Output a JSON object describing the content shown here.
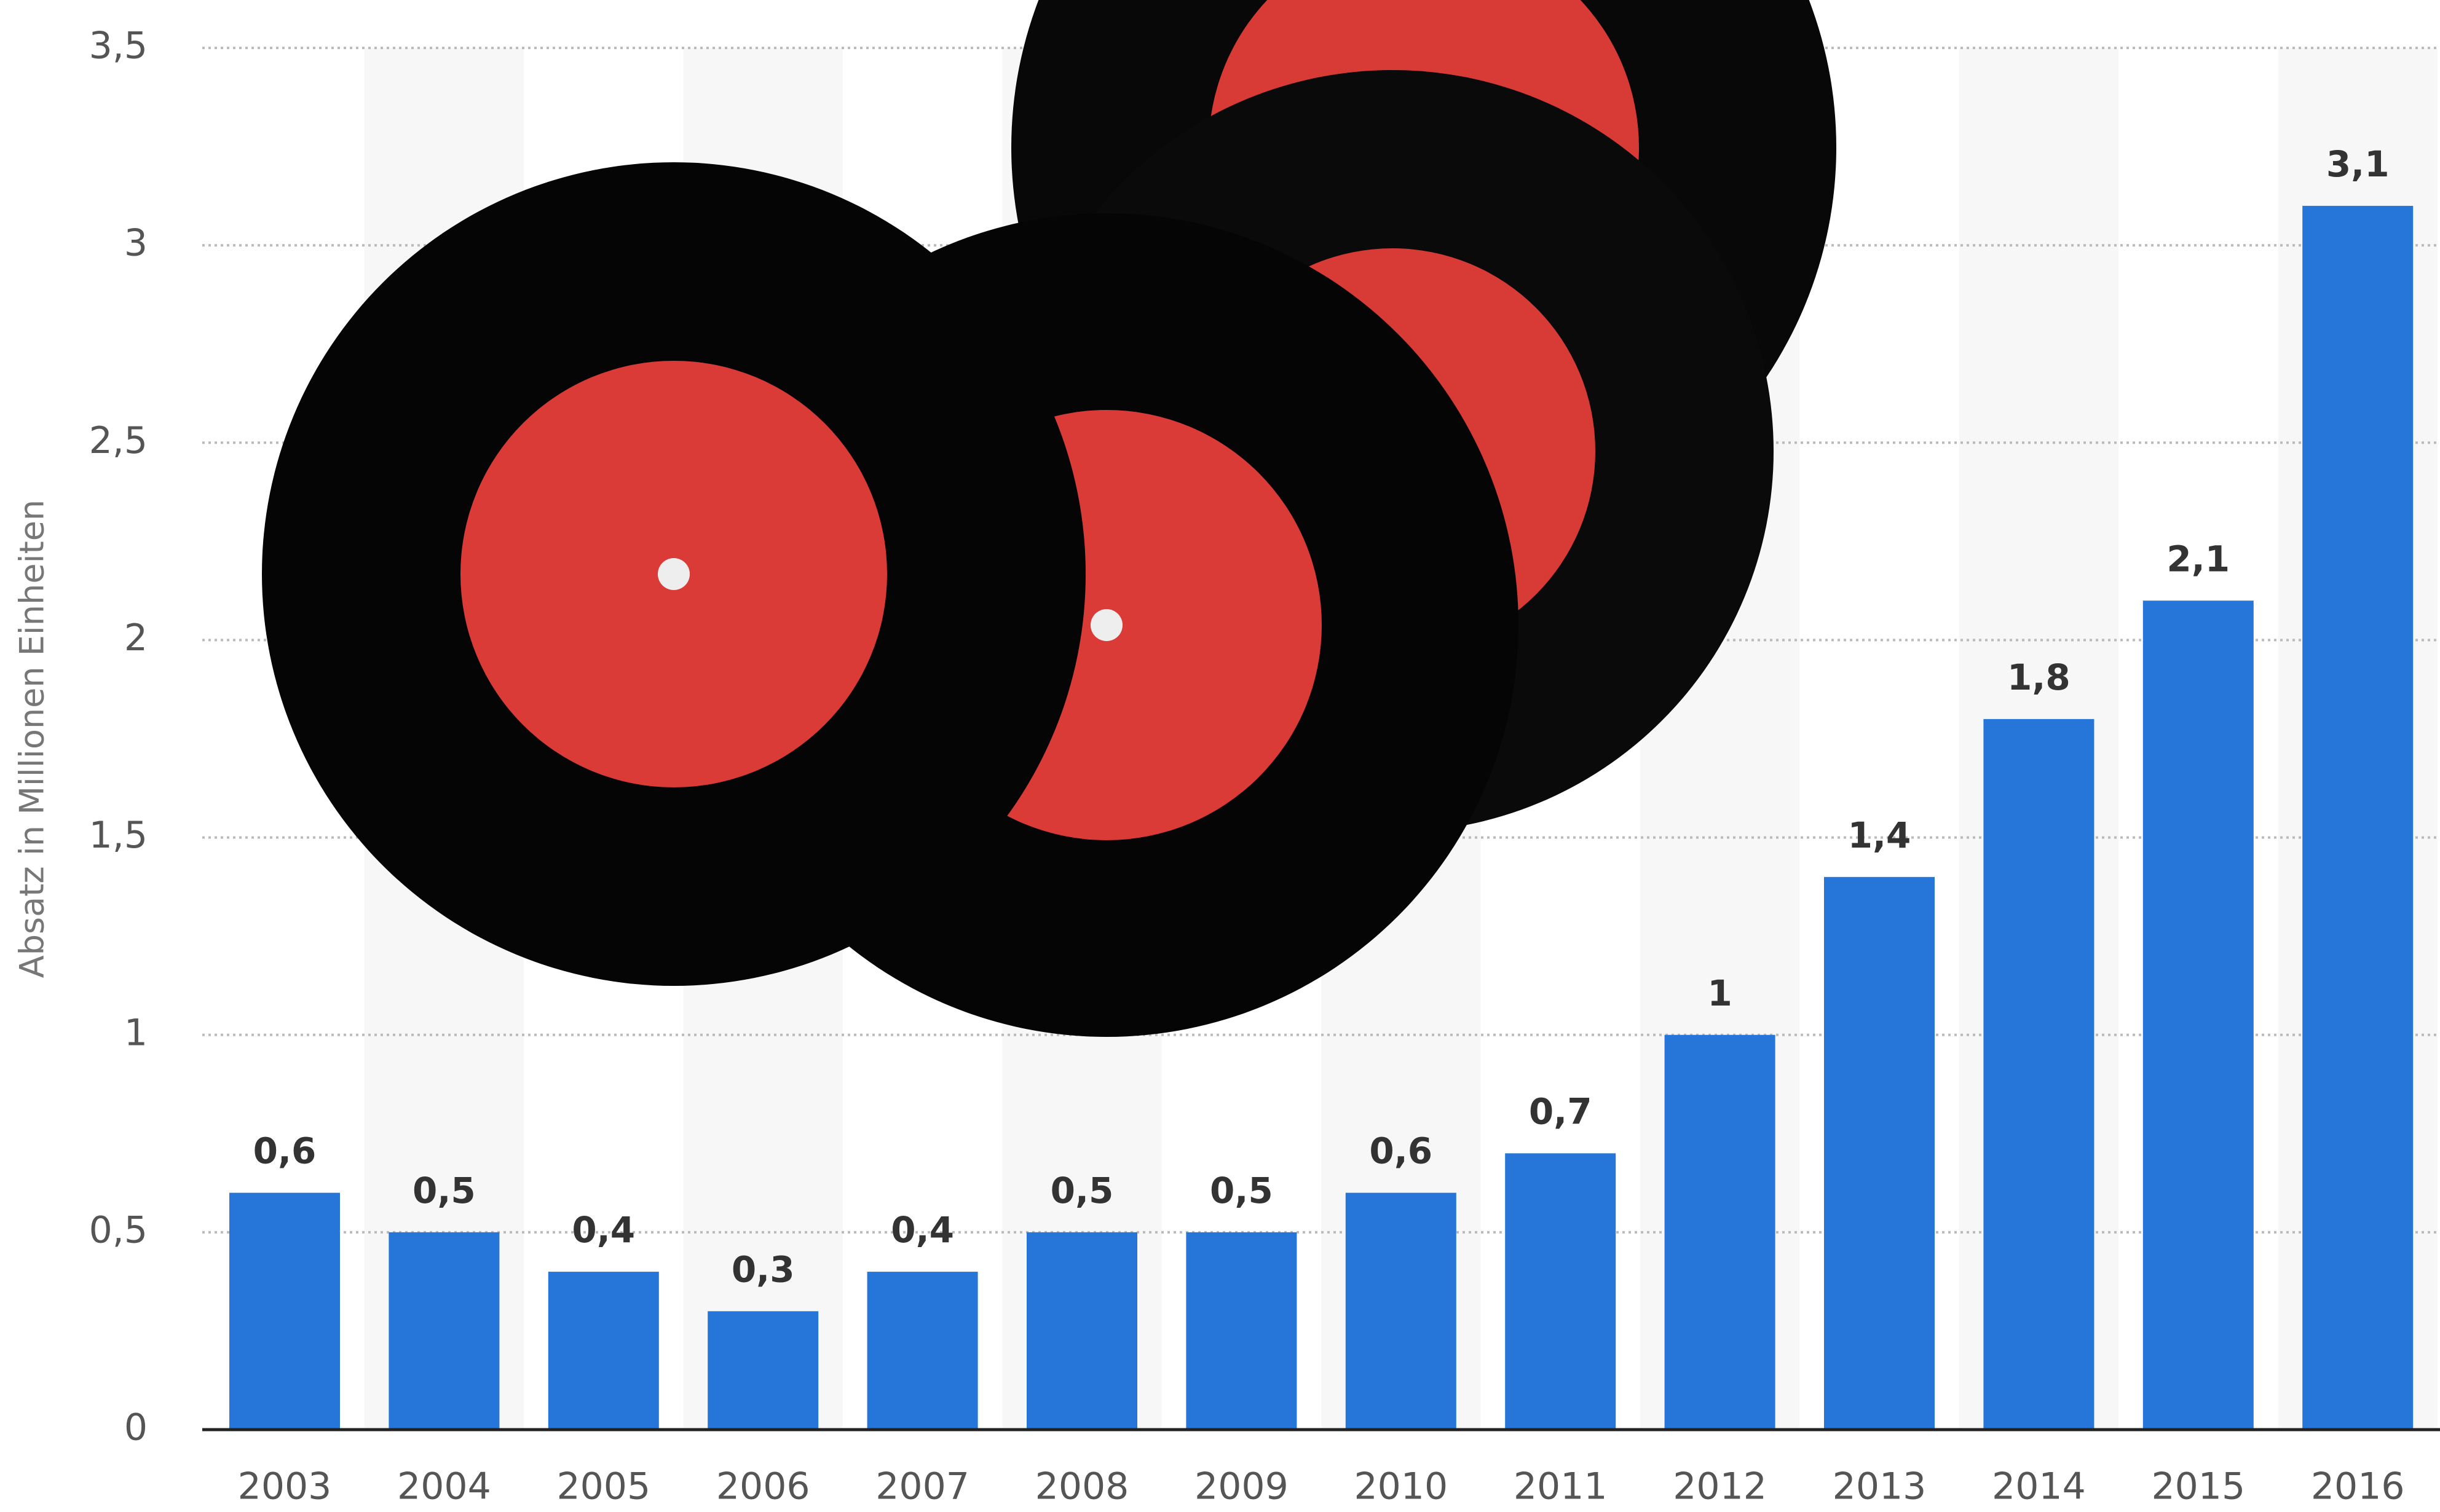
{
  "chart_data": {
    "type": "bar",
    "y_axis_label": "Absatz in Millionen Einheiten",
    "categories": [
      "2003",
      "2004",
      "2005",
      "2006",
      "2007",
      "2008",
      "2009",
      "2010",
      "2011",
      "2012",
      "2013",
      "2014",
      "2015",
      "2016"
    ],
    "values": [
      0.6,
      0.5,
      0.4,
      0.3,
      0.4,
      0.5,
      0.5,
      0.6,
      0.7,
      1,
      1.4,
      1.8,
      2.1,
      3.1
    ],
    "value_labels": [
      "0,6",
      "0,5",
      "0,4",
      "0,3",
      "0,4",
      "0,5",
      "0,5",
      "0,6",
      "0,7",
      "1",
      "1,4",
      "1,8",
      "2,1",
      "3,1"
    ],
    "color": "#2676d9",
    "ylim": [
      0,
      3.5
    ],
    "yticks": [
      0,
      {
        "value": 0.5,
        "label": "0,5"
      },
      1,
      {
        "value": 1.5,
        "label": "1,5"
      },
      2,
      {
        "value": 2.5,
        "label": "2,5"
      },
      3,
      {
        "value": 3.5,
        "label": "3,5"
      }
    ],
    "grid": true
  }
}
